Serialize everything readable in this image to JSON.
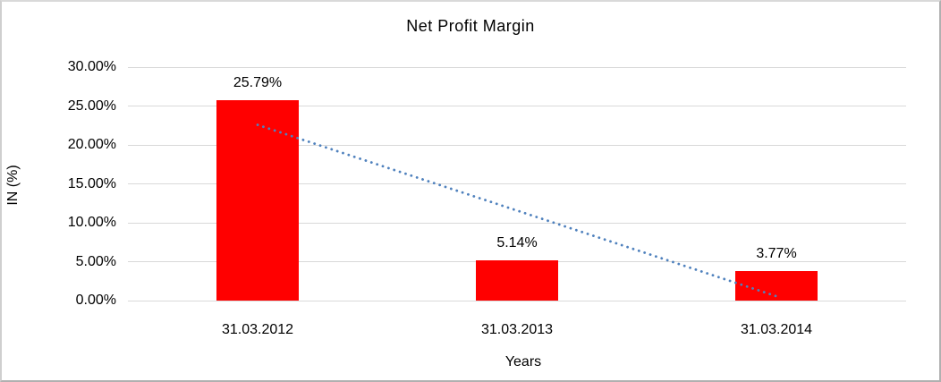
{
  "window": {
    "background": "#FFFFFF",
    "frame_border_color": "#B0B0B0"
  },
  "chart_data": {
    "type": "bar",
    "title": "Net Profit Margin",
    "xlabel": "Years",
    "ylabel": "IN (%)",
    "categories": [
      "31.03.2012",
      "31.03.2013",
      "31.03.2014"
    ],
    "values": [
      25.79,
      5.14,
      3.77
    ],
    "data_labels": [
      "25.79%",
      "5.14%",
      "3.77%"
    ],
    "series_name": "Net Profit Margin",
    "ylim": [
      0,
      30
    ],
    "ytick_values": [
      0,
      5,
      10,
      15,
      20,
      25,
      30
    ],
    "ytick_labels": [
      "0.00%",
      "5.00%",
      "10.00%",
      "15.00%",
      "20.00%",
      "25.00%",
      "30.00%"
    ],
    "grid": true,
    "legend": "none",
    "bar_color": "#FF0000",
    "gridline_color": "#D9D9D9",
    "axis_line_color": "#D9D9D9",
    "text_color": "#000000",
    "trendline": {
      "type": "linear",
      "style": "dotted",
      "color": "#4F81BD",
      "start_value": 22.58,
      "end_value": 0.56
    }
  }
}
